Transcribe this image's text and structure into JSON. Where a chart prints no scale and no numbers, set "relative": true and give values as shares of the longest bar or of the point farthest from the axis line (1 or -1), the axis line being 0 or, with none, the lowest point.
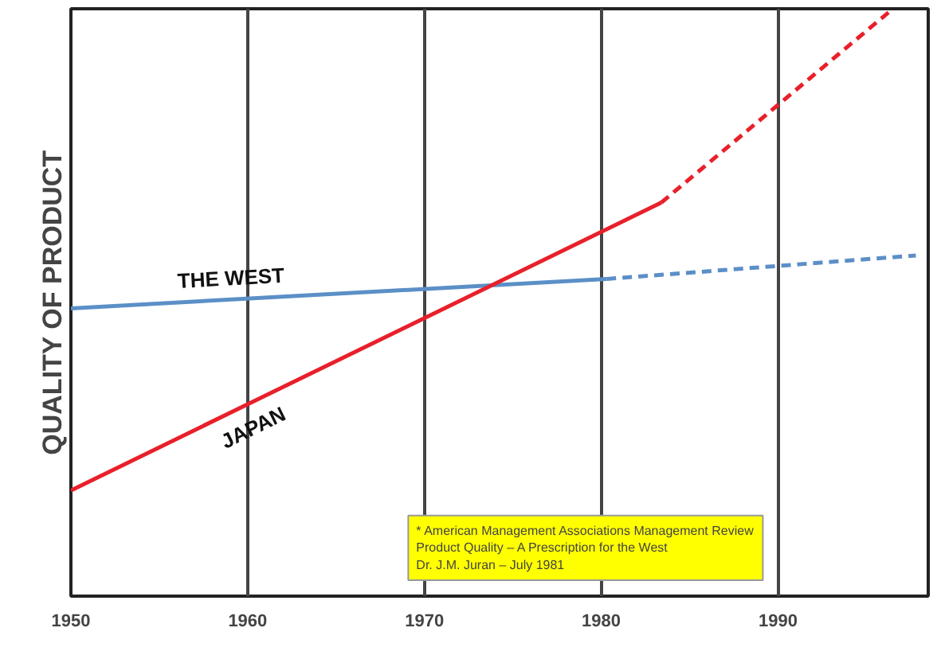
{
  "chart_data": {
    "type": "line",
    "relative": true,
    "ylabel": "QUALITY OF PRODUCT",
    "xlim": [
      1950,
      1998.5
    ],
    "xticks": [
      1950,
      1960,
      1970,
      1980,
      1990
    ],
    "grid": "x",
    "tick_labels": "x",
    "series": [
      {
        "name": "THE WEST",
        "color": "#5b8fc7",
        "x": [
          1950,
          1980.3
        ],
        "values": [
          0.49,
          0.54
        ],
        "line_style": "solid"
      },
      {
        "color": "#5b8fc7",
        "x": [
          1980.3,
          1997.8
        ],
        "values": [
          0.54,
          0.58
        ],
        "line_style": "dashed"
      },
      {
        "name": "JAPAN",
        "color": "#e8202a",
        "x": [
          1950,
          1983.4
        ],
        "values": [
          0.18,
          0.67
        ],
        "line_style": "solid"
      },
      {
        "color": "#e8202a",
        "x": [
          1983.4,
          1996.5
        ],
        "values": [
          0.67,
          1.0
        ],
        "line_style": "dashed"
      }
    ],
    "annotations": [
      "* American Management Associations Management Review\nProduct Quality – A Prescription for the West\nDr. J.M. Juran – July 1981"
    ]
  }
}
